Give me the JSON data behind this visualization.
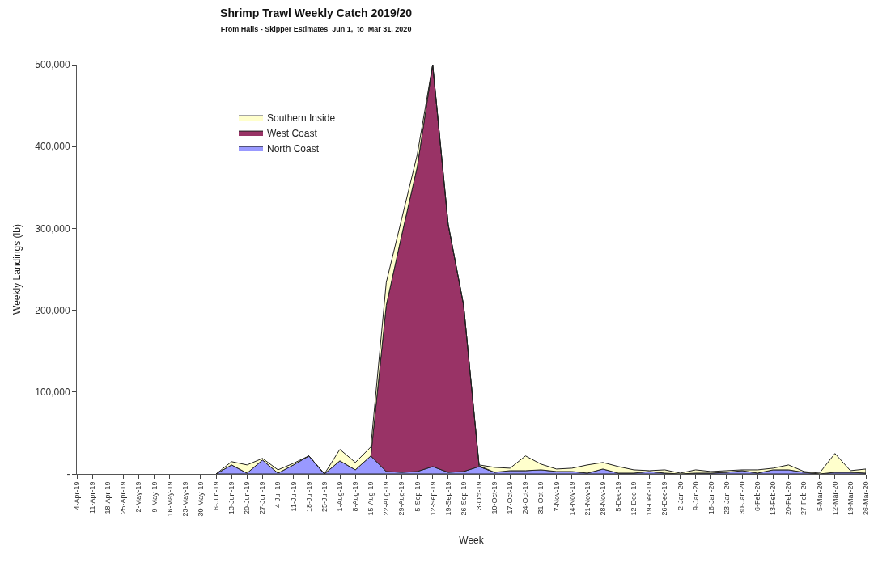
{
  "chart_data": {
    "type": "area",
    "stacked": true,
    "title": "Shrimp Trawl Weekly Catch 2019/20",
    "subtitle": "From Hails - Skipper Estimates  Jun 1,  to  Mar 31, 2020",
    "xlabel": "Week",
    "ylabel": "Weekly Landings (lb)",
    "categories": [
      "4-Apr-19",
      "11-Apr-19",
      "18-Apr-19",
      "25-Apr-19",
      "2-May-19",
      "9-May-19",
      "16-May-19",
      "23-May-19",
      "30-May-19",
      "6-Jun-19",
      "13-Jun-19",
      "20-Jun-19",
      "27-Jun-19",
      "4-Jul-19",
      "11-Jul-19",
      "18-Jul-19",
      "25-Jul-19",
      "1-Aug-19",
      "8-Aug-19",
      "15-Aug-19",
      "22-Aug-19",
      "29-Aug-19",
      "5-Sep-19",
      "12-Sep-19",
      "19-Sep-19",
      "26-Sep-19",
      "3-Oct-19",
      "10-Oct-19",
      "17-Oct-19",
      "24-Oct-19",
      "31-Oct-19",
      "7-Nov-19",
      "14-Nov-19",
      "21-Nov-19",
      "28-Nov-19",
      "5-Dec-19",
      "12-Dec-19",
      "19-Dec-19",
      "26-Dec-19",
      "2-Jan-20",
      "9-Jan-20",
      "16-Jan-20",
      "23-Jan-20",
      "30-Jan-20",
      "6-Feb-20",
      "13-Feb-20",
      "20-Feb-20",
      "27-Feb-20",
      "5-Mar-20",
      "12-Mar-20",
      "19-Mar-20",
      "26-Mar-20"
    ],
    "series": [
      {
        "name": "North Coast",
        "color": "#9999ff",
        "values": [
          null,
          null,
          null,
          null,
          null,
          null,
          null,
          null,
          null,
          0,
          11000,
          1000,
          17000,
          1000,
          11000,
          22000,
          0,
          16000,
          5000,
          22000,
          3000,
          2000,
          3000,
          9000,
          2000,
          3000,
          9000,
          2000,
          4000,
          4000,
          5000,
          3000,
          3000,
          1000,
          6000,
          1000,
          1000,
          3000,
          1000,
          0,
          1000,
          1000,
          2000,
          4000,
          1000,
          5000,
          5000,
          2000,
          0,
          2000,
          2000,
          1000
        ]
      },
      {
        "name": "West Coast",
        "color": "#993366",
        "values": [
          null,
          null,
          null,
          null,
          null,
          null,
          null,
          null,
          null,
          null,
          null,
          null,
          null,
          null,
          null,
          null,
          null,
          null,
          null,
          0,
          203000,
          290000,
          372000,
          491000,
          303000,
          203000,
          1000,
          0,
          null,
          null,
          null,
          null,
          null,
          null,
          null,
          null,
          null,
          null,
          null,
          null,
          null,
          null,
          null,
          null,
          null,
          null,
          null,
          null,
          null,
          null,
          null,
          null
        ]
      },
      {
        "name": "Southern Inside",
        "color": "#ffffcc",
        "values": [
          null,
          null,
          null,
          null,
          null,
          null,
          null,
          null,
          null,
          0,
          4000,
          10000,
          2000,
          4000,
          2000,
          0,
          0,
          14000,
          9000,
          11000,
          28000,
          20000,
          15000,
          0,
          0,
          0,
          1000,
          6000,
          3000,
          18000,
          7000,
          3000,
          4000,
          10000,
          8000,
          8000,
          4000,
          1000,
          4000,
          1000,
          4000,
          2000,
          2000,
          1000,
          4000,
          2000,
          6000,
          1000,
          1000,
          23000,
          2000,
          5000
        ]
      }
    ],
    "ylim": [
      0,
      500000
    ],
    "yticks": [
      {
        "value": 0,
        "label": "-"
      },
      {
        "value": 100000,
        "label": "100,000"
      },
      {
        "value": 200000,
        "label": "200,000"
      },
      {
        "value": 300000,
        "label": "300,000"
      },
      {
        "value": 400000,
        "label": "400,000"
      },
      {
        "value": 500000,
        "label": "500,000"
      }
    ],
    "legend": "top left"
  }
}
